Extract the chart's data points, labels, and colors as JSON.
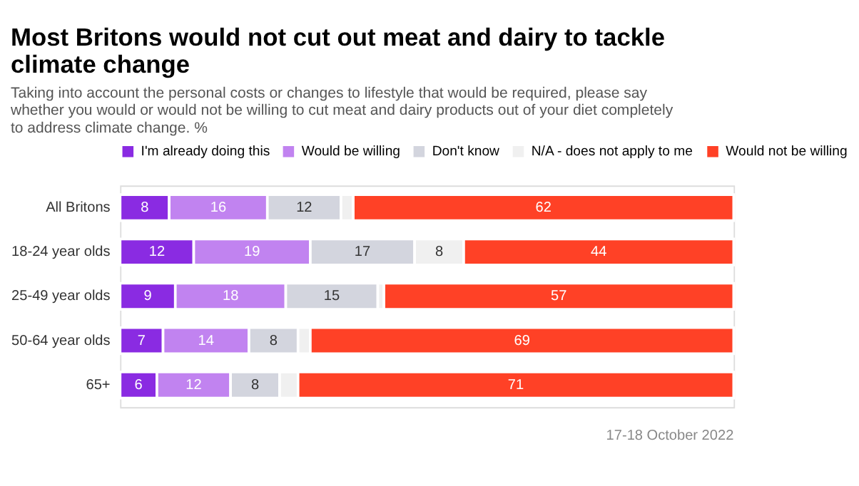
{
  "chart_data": {
    "type": "bar",
    "orientation": "horizontal",
    "stacked": true,
    "title": "Most Britons would not cut out meat and dairy to tackle climate change",
    "subtitle": "Taking into account the personal costs or changes to lifestyle that would be required, please say whether you would or would not be willing to cut meat and dairy products out of your diet completely to address climate change. %",
    "categories": [
      "All Britons",
      "18-24 year olds",
      "25-49 year olds",
      "50-64 year olds",
      "65+"
    ],
    "series": [
      {
        "name": "I'm already doing this",
        "color": "#8a2be2",
        "values": [
          8,
          12,
          9,
          7,
          6
        ]
      },
      {
        "name": "Would be willing",
        "color": "#c183f0",
        "values": [
          16,
          19,
          18,
          14,
          12
        ]
      },
      {
        "name": "Don't know",
        "color": "#d3d5de",
        "values": [
          12,
          17,
          15,
          8,
          8
        ]
      },
      {
        "name": "N/A - does not apply to me",
        "color": "#f0f0f0",
        "values": [
          2,
          8,
          1,
          2,
          3
        ],
        "value_labels": [
          null,
          "8",
          null,
          null,
          null
        ]
      },
      {
        "name": "Would not be willing",
        "color": "#ff4126",
        "values": [
          62,
          44,
          57,
          69,
          71
        ]
      }
    ],
    "data_labels": true,
    "legend": "top",
    "annotations": [
      "17-18 October 2022"
    ]
  }
}
